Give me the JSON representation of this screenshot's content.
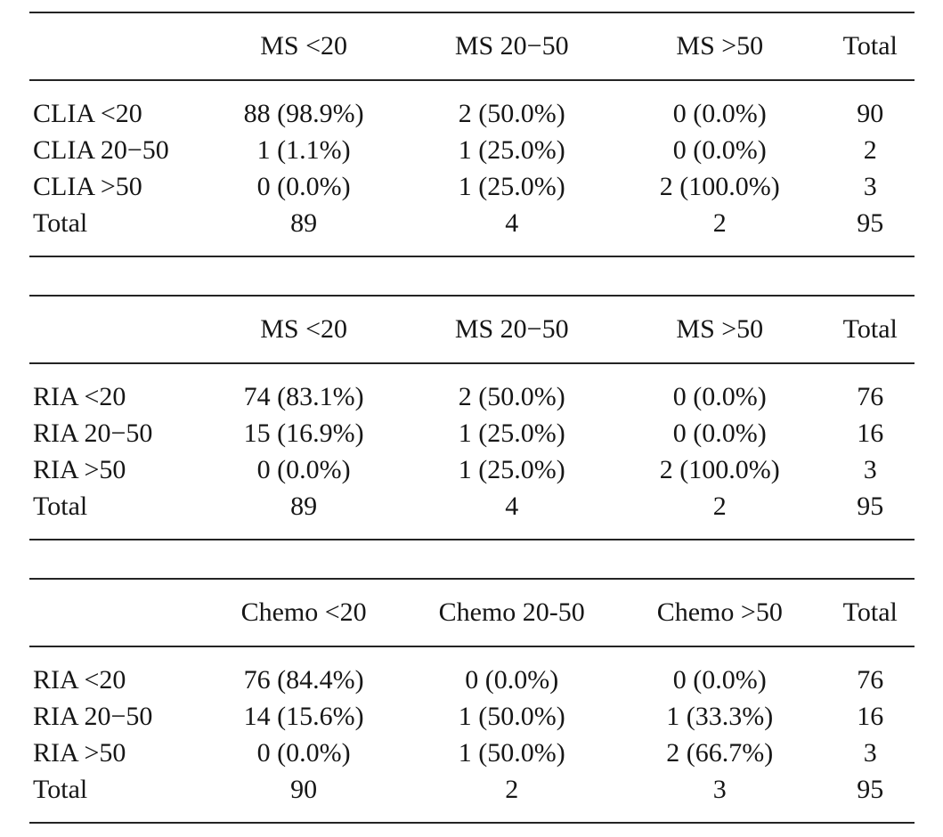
{
  "page": {
    "background": "#ffffff",
    "text_color": "#161616",
    "rule_color": "#242424"
  },
  "tables": [
    {
      "columns": [
        "",
        "MS <20",
        "MS 20−50",
        "MS >50",
        "Total"
      ],
      "rows": [
        {
          "label": "CLIA <20",
          "cells": [
            "88 (98.9%)",
            "2 (50.0%)",
            "0 (0.0%)",
            "90"
          ]
        },
        {
          "label": "CLIA 20−50",
          "cells": [
            "1 (1.1%)",
            "1 (25.0%)",
            "0 (0.0%)",
            "2"
          ]
        },
        {
          "label": "CLIA >50",
          "cells": [
            "0 (0.0%)",
            "1 (25.0%)",
            "2 (100.0%)",
            "3"
          ]
        },
        {
          "label": "Total",
          "cells": [
            "89",
            "4",
            "2",
            "95"
          ]
        }
      ]
    },
    {
      "columns": [
        "",
        "MS <20",
        "MS 20−50",
        "MS >50",
        "Total"
      ],
      "rows": [
        {
          "label": "RIA <20",
          "cells": [
            "74 (83.1%)",
            "2 (50.0%)",
            "0 (0.0%)",
            "76"
          ]
        },
        {
          "label": "RIA 20−50",
          "cells": [
            "15 (16.9%)",
            "1 (25.0%)",
            "0 (0.0%)",
            "16"
          ]
        },
        {
          "label": "RIA >50",
          "cells": [
            "0 (0.0%)",
            "1 (25.0%)",
            "2 (100.0%)",
            "3"
          ]
        },
        {
          "label": "Total",
          "cells": [
            "89",
            "4",
            "2",
            "95"
          ]
        }
      ]
    },
    {
      "columns": [
        "",
        "Chemo <20",
        "Chemo 20-50",
        "Chemo >50",
        "Total"
      ],
      "rows": [
        {
          "label": "RIA <20",
          "cells": [
            "76 (84.4%)",
            "0 (0.0%)",
            "0 (0.0%)",
            "76"
          ]
        },
        {
          "label": "RIA 20−50",
          "cells": [
            "14 (15.6%)",
            "1 (50.0%)",
            "1 (33.3%)",
            "16"
          ]
        },
        {
          "label": "RIA >50",
          "cells": [
            "0 (0.0%)",
            "1 (50.0%)",
            "2 (66.7%)",
            "3"
          ]
        },
        {
          "label": "Total",
          "cells": [
            "90",
            "2",
            "3",
            "95"
          ]
        }
      ]
    }
  ]
}
